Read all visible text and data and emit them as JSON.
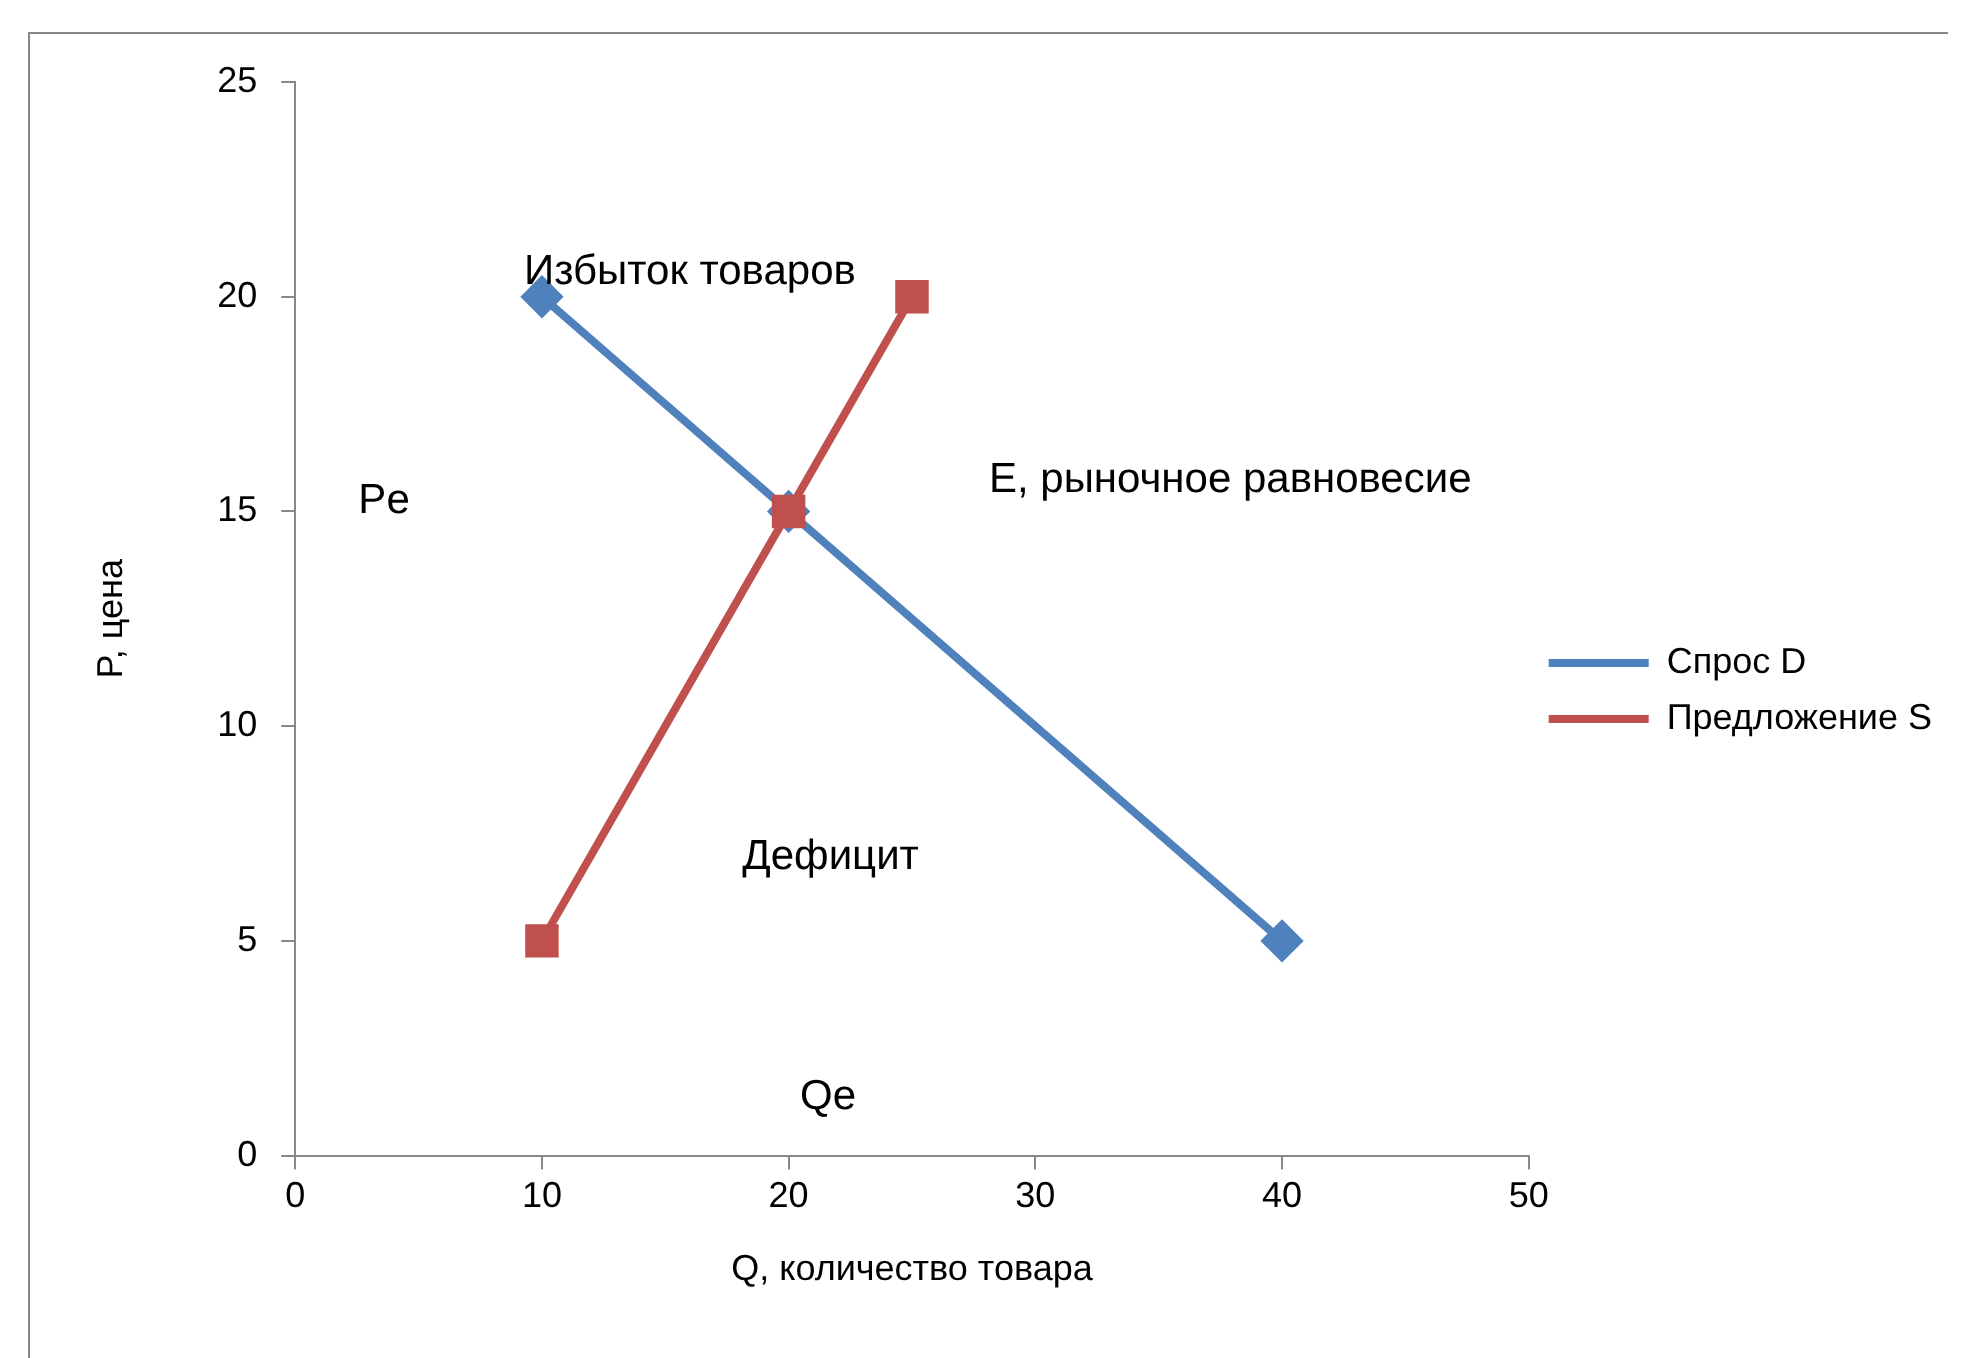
{
  "chart_data": {
    "type": "line",
    "xlabel": "Q, количество товара",
    "ylabel": "P, цена",
    "xlim": [
      0,
      50
    ],
    "xticks": [
      0,
      10,
      20,
      30,
      40,
      50
    ],
    "ylim": [
      0,
      25
    ],
    "yticks": [
      0,
      5,
      10,
      15,
      20,
      25
    ],
    "grid": false,
    "legend": "right",
    "line_style": "solid",
    "series": [
      {
        "name": "Спрос D",
        "color": "#4f81bd",
        "marker": "diamond",
        "x": [
          10,
          20,
          40
        ],
        "values": [
          20,
          15,
          5
        ]
      },
      {
        "name": "Предложение S",
        "color": "#c0504d",
        "marker": "square",
        "x": [
          10,
          20,
          25
        ],
        "values": [
          5,
          15,
          20
        ]
      }
    ],
    "annotations": [
      "Избыток товаров",
      "Pe",
      "E, рыночное равновесие",
      "Дефицит",
      "Qe"
    ]
  }
}
